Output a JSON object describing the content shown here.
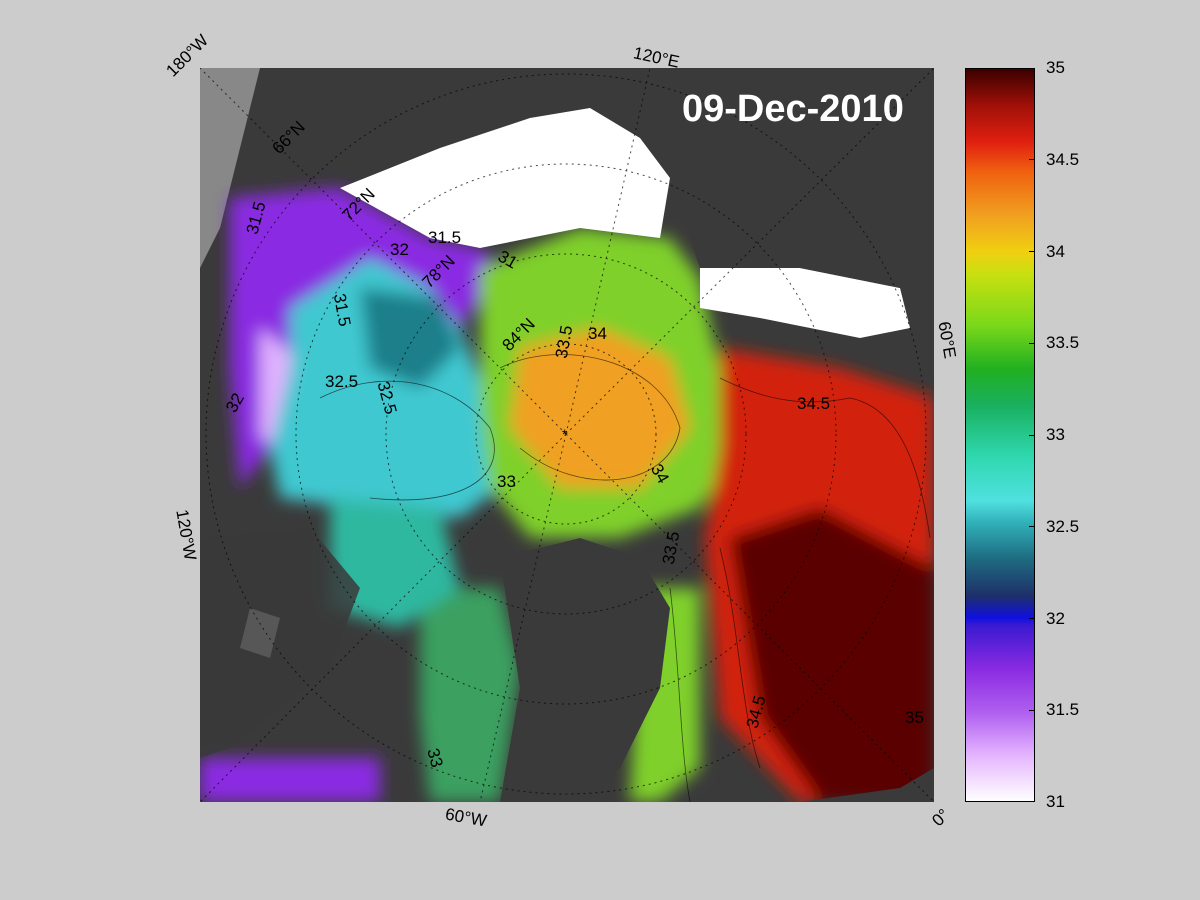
{
  "map": {
    "date": "09-Dec-2010",
    "longitude_labels": [
      "180°W",
      "120°E",
      "60°E",
      "0°",
      "60°W",
      "120°W"
    ],
    "latitude_labels": [
      "66°N",
      "72°N",
      "78°N",
      "84°N"
    ],
    "contour_labels": [
      "31.5",
      "31.5",
      "31",
      "32",
      "32.5",
      "33",
      "33.5",
      "34",
      "34.5",
      "34",
      "33.5",
      "33",
      "32.5",
      "32",
      "31.5",
      "34.5",
      "35"
    ],
    "colors": {
      "land": "#3a3a3a",
      "sea_ice": "#ffffff",
      "outside_map": "#888888"
    }
  },
  "colorbar": {
    "ticks": [
      "35",
      "34.5",
      "34",
      "33.5",
      "33",
      "32.5",
      "32",
      "31.5",
      "31"
    ],
    "min": 31,
    "max": 35
  }
}
